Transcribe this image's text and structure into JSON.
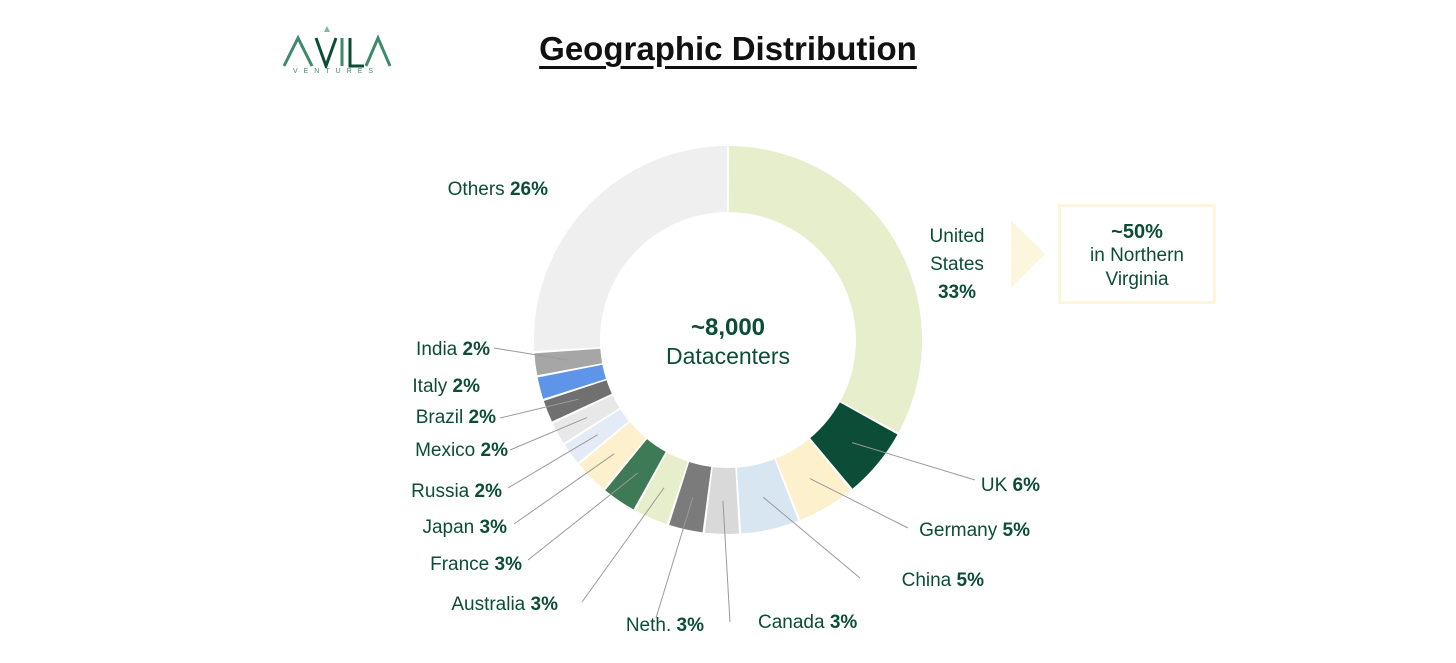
{
  "logo": {
    "wordmark": "ΛVILA",
    "subtitle": "VENTURES"
  },
  "header": {
    "title": "Geographic Distribution"
  },
  "center": {
    "value": "~8,000",
    "label": "Datacenters"
  },
  "callout": {
    "value": "~50%",
    "line1": "in Northern",
    "line2": "Virginia"
  },
  "colors": {
    "label_text": "#0b4d36",
    "dark_green": "#0b4d36",
    "light_green": "#e6eecb"
  },
  "chart_data": {
    "type": "pie",
    "subtype": "donut",
    "title": "Geographic Distribution",
    "total_label": "~8,000 Datacenters",
    "slices": [
      {
        "label": "United States",
        "value": 33,
        "display": "33%",
        "color": "#e6eecb"
      },
      {
        "label": "UK",
        "value": 6,
        "display": "6%",
        "color": "#0b4d36"
      },
      {
        "label": "Germany",
        "value": 5,
        "display": "5%",
        "color": "#fdf0cc"
      },
      {
        "label": "China",
        "value": 5,
        "display": "5%",
        "color": "#d8e6f2"
      },
      {
        "label": "Canada",
        "value": 3,
        "display": "3%",
        "color": "#d9d9d9"
      },
      {
        "label": "Neth.",
        "value": 3,
        "display": "3%",
        "color": "#7b7b7b"
      },
      {
        "label": "Australia",
        "value": 3,
        "display": "3%",
        "color": "#e6eecb"
      },
      {
        "label": "France",
        "value": 3,
        "display": "3%",
        "color": "#3f7a57"
      },
      {
        "label": "Japan",
        "value": 3,
        "display": "3%",
        "color": "#fdf0cc"
      },
      {
        "label": "Russia",
        "value": 2,
        "display": "2%",
        "color": "#e3ecf6"
      },
      {
        "label": "Mexico",
        "value": 2,
        "display": "2%",
        "color": "#e8e8e8"
      },
      {
        "label": "Brazil",
        "value": 2,
        "display": "2%",
        "color": "#707070"
      },
      {
        "label": "Italy",
        "value": 2,
        "display": "2%",
        "color": "#5f95e8"
      },
      {
        "label": "India",
        "value": 2,
        "display": "2%",
        "color": "#a6a6a6"
      },
      {
        "label": "Others",
        "value": 26,
        "display": "26%",
        "color": "#efefef"
      }
    ]
  }
}
